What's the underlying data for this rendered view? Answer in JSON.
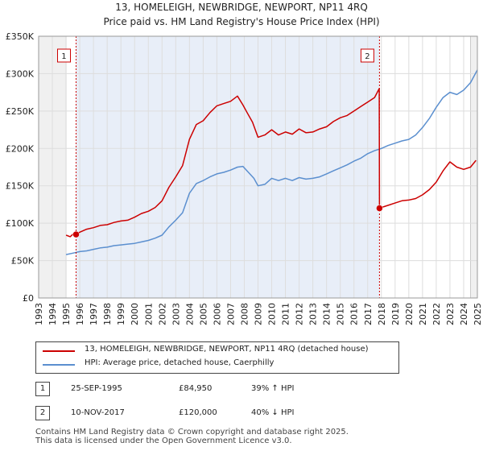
{
  "title": "13, HOMELEIGH, NEWBRIDGE, NEWPORT, NP11 4RQ",
  "subtitle": "Price paid vs. HM Land Registry's House Price Index (HPI)",
  "colors": {
    "property": "#cc0000",
    "hpi": "#5b8fcf",
    "shade": "#e8eef8",
    "grid": "#dddddd"
  },
  "chart_data": {
    "type": "line",
    "title": "13, HOMELEIGH, NEWBRIDGE, NEWPORT, NP11 4RQ — Price paid vs. HM Land Registry's House Price Index (HPI)",
    "xlim": [
      1993,
      2025
    ],
    "ylim": [
      0,
      350000
    ],
    "x_ticks": [
      "1993",
      "1994",
      "1995",
      "1996",
      "1997",
      "1998",
      "1999",
      "2000",
      "2001",
      "2002",
      "2003",
      "2004",
      "2005",
      "2006",
      "2007",
      "2008",
      "2009",
      "2010",
      "2011",
      "2012",
      "2013",
      "2014",
      "2015",
      "2016",
      "2017",
      "2018",
      "2019",
      "2020",
      "2021",
      "2022",
      "2023",
      "2024",
      "2025"
    ],
    "y_ticks": [
      {
        "value": 0,
        "label": "£0"
      },
      {
        "value": 50000,
        "label": "£50K"
      },
      {
        "value": 100000,
        "label": "£100K"
      },
      {
        "value": 150000,
        "label": "£150K"
      },
      {
        "value": 200000,
        "label": "£200K"
      },
      {
        "value": 250000,
        "label": "£250K"
      },
      {
        "value": 300000,
        "label": "£300K"
      },
      {
        "value": 350000,
        "label": "£350K"
      }
    ],
    "shaded_before": 1995.0,
    "shaded_after": 2024.5,
    "series": [
      {
        "name": "13, HOMELEIGH, NEWBRIDGE, NEWPORT, NP11 4RQ (detached house)",
        "x": [
          1995.0,
          1995.3,
          1995.6,
          1995.73,
          1996.0,
          1996.5,
          1997.0,
          1997.5,
          1998.0,
          1998.5,
          1999.0,
          1999.5,
          2000.0,
          2000.5,
          2001.0,
          2001.5,
          2002.0,
          2002.5,
          2003.0,
          2003.5,
          2004.0,
          2004.5,
          2005.0,
          2005.5,
          2006.0,
          2006.5,
          2007.0,
          2007.5,
          2007.9,
          2008.2,
          2008.6,
          2009.0,
          2009.5,
          2010.0,
          2010.5,
          2011.0,
          2011.5,
          2012.0,
          2012.5,
          2013.0,
          2013.5,
          2014.0,
          2014.5,
          2015.0,
          2015.5,
          2016.0,
          2016.5,
          2017.0,
          2017.5,
          2017.84,
          2017.86,
          2018.0,
          2018.5,
          2019.0,
          2019.5,
          2020.0,
          2020.5,
          2021.0,
          2021.5,
          2022.0,
          2022.5,
          2023.0,
          2023.5,
          2024.0,
          2024.5,
          2024.9
        ],
        "values": [
          84000,
          82000,
          87000,
          84950,
          88000,
          92000,
          94000,
          97000,
          98000,
          101000,
          103000,
          104000,
          108000,
          113000,
          116000,
          121000,
          130000,
          148000,
          162000,
          177000,
          212000,
          232000,
          237000,
          248000,
          257000,
          260000,
          263000,
          270000,
          258000,
          248000,
          235000,
          215000,
          218000,
          225000,
          218000,
          222000,
          219000,
          226000,
          221000,
          222000,
          226000,
          229000,
          236000,
          241000,
          244000,
          250000,
          256000,
          262000,
          268000,
          280000,
          120000,
          121000,
          124000,
          127000,
          130000,
          131000,
          133000,
          138000,
          145000,
          155000,
          170000,
          182000,
          175000,
          172000,
          175000,
          184000
        ]
      },
      {
        "name": "HPI: Average price, detached house, Caerphilly",
        "x": [
          1995.0,
          1995.5,
          1996.0,
          1996.5,
          1997.0,
          1997.5,
          1998.0,
          1998.5,
          1999.0,
          1999.5,
          2000.0,
          2000.5,
          2001.0,
          2001.5,
          2002.0,
          2002.5,
          2003.0,
          2003.5,
          2004.0,
          2004.5,
          2005.0,
          2005.5,
          2006.0,
          2006.5,
          2007.0,
          2007.5,
          2007.9,
          2008.3,
          2008.7,
          2009.0,
          2009.5,
          2010.0,
          2010.5,
          2011.0,
          2011.5,
          2012.0,
          2012.5,
          2013.0,
          2013.5,
          2014.0,
          2014.5,
          2015.0,
          2015.5,
          2016.0,
          2016.5,
          2017.0,
          2017.5,
          2018.0,
          2018.5,
          2019.0,
          2019.5,
          2020.0,
          2020.5,
          2021.0,
          2021.5,
          2022.0,
          2022.5,
          2023.0,
          2023.5,
          2024.0,
          2024.5,
          2025.0
        ],
        "values": [
          58000,
          60000,
          62000,
          63000,
          65000,
          67000,
          68000,
          70000,
          71000,
          72000,
          73000,
          75000,
          77000,
          80000,
          84000,
          95000,
          104000,
          114000,
          140000,
          153000,
          157000,
          162000,
          166000,
          168000,
          171000,
          175000,
          176000,
          168000,
          160000,
          150000,
          152000,
          160000,
          157000,
          160000,
          157000,
          161000,
          159000,
          160000,
          162000,
          166000,
          170000,
          174000,
          178000,
          183000,
          187000,
          193000,
          197000,
          200000,
          204000,
          207000,
          210000,
          212000,
          218000,
          228000,
          240000,
          255000,
          268000,
          275000,
          272000,
          278000,
          288000,
          305000
        ]
      }
    ],
    "annotations": [
      {
        "label": "1",
        "x": 1995.73,
        "value": 84950
      },
      {
        "label": "2",
        "x": 2017.86,
        "value": 120000
      }
    ]
  },
  "legend": {
    "property_label": "13, HOMELEIGH, NEWBRIDGE, NEWPORT, NP11 4RQ (detached house)",
    "hpi_label": "HPI: Average price, detached house, Caerphilly"
  },
  "transactions": [
    {
      "num": "1",
      "date": "25-SEP-1995",
      "price": "£84,950",
      "hpi": "39% ↑ HPI"
    },
    {
      "num": "2",
      "date": "10-NOV-2017",
      "price": "£120,000",
      "hpi": "40% ↓ HPI"
    }
  ],
  "footer": {
    "line1": "Contains HM Land Registry data © Crown copyright and database right 2025.",
    "line2": "This data is licensed under the Open Government Licence v3.0."
  }
}
